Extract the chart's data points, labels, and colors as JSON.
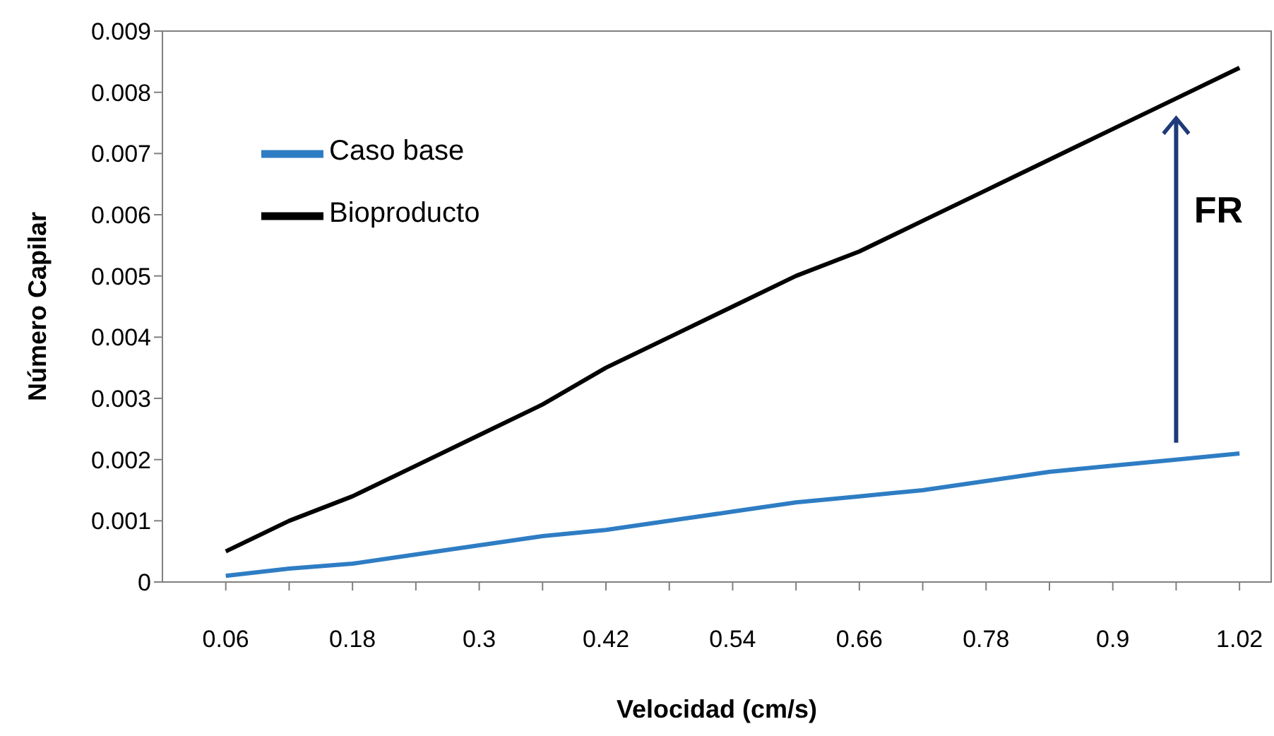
{
  "chart_data": {
    "type": "line",
    "xlabel": "Velocidad (cm/s)",
    "ylabel": "Número Capilar",
    "categories": [
      "0.06",
      null,
      "0.18",
      null,
      "0.3",
      null,
      "0.42",
      null,
      "0.54",
      null,
      "0.66",
      null,
      "0.78",
      null,
      "0.9",
      null,
      "1.02"
    ],
    "series": [
      {
        "name": "Caso base",
        "color": "#2e7dc4",
        "values": [
          0.0001,
          0.00022,
          0.0003,
          0.00045,
          0.0006,
          0.00075,
          0.00085,
          0.001,
          0.00115,
          0.0013,
          0.0014,
          0.0015,
          0.00165,
          0.0018,
          0.0019,
          0.002,
          0.0021
        ]
      },
      {
        "name": "Bioproducto",
        "color": "#000000",
        "values": [
          0.0005,
          0.001,
          0.0014,
          0.0019,
          0.0024,
          0.0029,
          0.0035,
          0.004,
          0.0045,
          0.005,
          0.0054,
          0.0059,
          0.0064,
          0.0069,
          0.0074,
          0.0079,
          0.0084
        ]
      }
    ],
    "ylim": [
      0,
      0.009
    ],
    "yticks": [
      0,
      0.001,
      0.002,
      0.003,
      0.004,
      0.005,
      0.006,
      0.007,
      0.008,
      0.009
    ],
    "grid": false,
    "legend": "top left",
    "marker": "none",
    "line_style": "solid",
    "annotations": [
      "FR"
    ]
  }
}
